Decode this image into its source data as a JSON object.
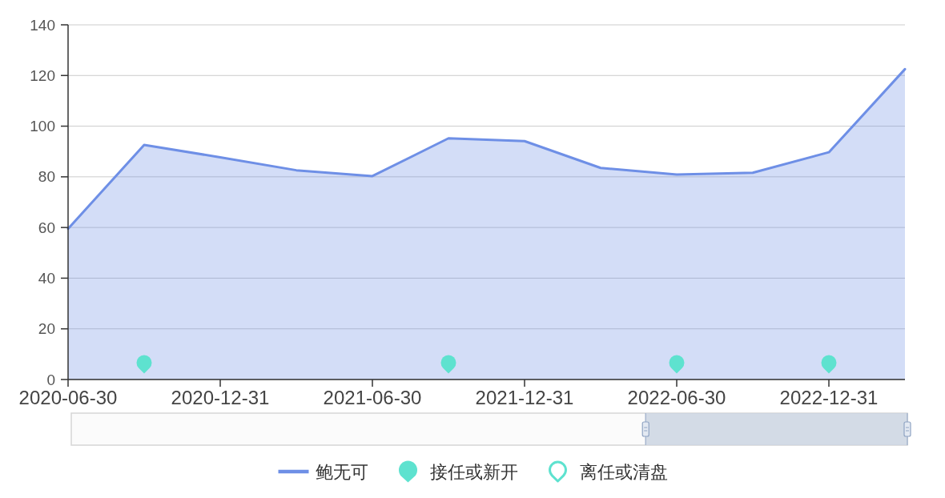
{
  "chart_data": {
    "type": "area",
    "categories": [
      "2020-06-30",
      null,
      "2020-12-31",
      null,
      "2021-06-30",
      null,
      "2021-12-31",
      null,
      "2022-06-30",
      null,
      "2022-12-31",
      null
    ],
    "series": [
      {
        "name": "鲍无可",
        "color": "#6e8fe6",
        "values": [
          59.5,
          92.6,
          87.7,
          82.6,
          80.3,
          95.2,
          94.1,
          83.5,
          80.9,
          81.6,
          89.7,
          122.5
        ]
      },
      {
        "name": "接任或新开",
        "type": "scatter",
        "color": "#5ee2cf",
        "values": [
          null,
          6,
          null,
          null,
          null,
          6,
          null,
          null,
          6,
          null,
          6,
          null
        ]
      },
      {
        "name": "离任或清盘",
        "type": "scatter",
        "color": "#5ee2cf",
        "values": [
          null,
          null,
          null,
          null,
          null,
          null,
          null,
          null,
          null,
          null,
          null,
          null
        ]
      }
    ],
    "ylim": [
      0,
      140
    ],
    "yticks": [
      0,
      20,
      40,
      60,
      80,
      100,
      120,
      140
    ],
    "grid": "y",
    "legend": "bottom"
  }
}
